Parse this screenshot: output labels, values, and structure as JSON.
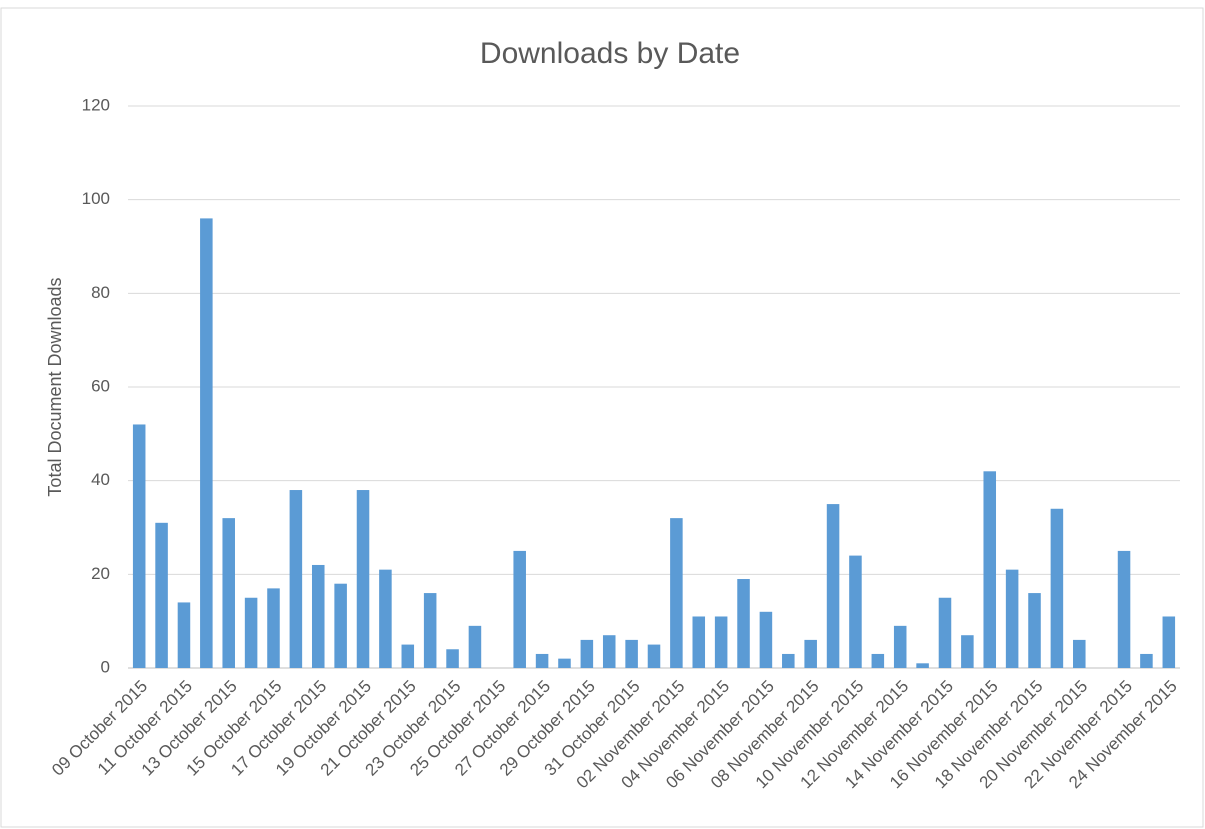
{
  "chart_data": {
    "type": "bar",
    "title": "Downloads by Date",
    "y_label": "Total Document Downloads",
    "categories": [
      "09 October 2015",
      null,
      "11 October 2015",
      null,
      "13 October 2015",
      null,
      "15 October 2015",
      null,
      "17 October 2015",
      null,
      "19 October 2015",
      null,
      "21 October 2015",
      null,
      "23 October 2015",
      null,
      "25 October 2015",
      null,
      "27 October 2015",
      null,
      "29 October 2015",
      null,
      "31 October 2015",
      null,
      "02 November 2015",
      null,
      "04 November 2015",
      null,
      "06 November 2015",
      null,
      "08 November 2015",
      null,
      "10 November 2015",
      null,
      "12 November 2015",
      null,
      "14 November 2015",
      null,
      "16 November 2015",
      null,
      "18 November 2015",
      null,
      "20 November 2015",
      null,
      "22 November 2015",
      null,
      "24 November 2015"
    ],
    "values": [
      52,
      31,
      14,
      96,
      32,
      15,
      17,
      38,
      22,
      18,
      38,
      21,
      5,
      16,
      4,
      9,
      0,
      25,
      3,
      2,
      6,
      7,
      6,
      5,
      32,
      11,
      11,
      19,
      12,
      3,
      6,
      35,
      24,
      3,
      9,
      1,
      15,
      7,
      42,
      21,
      16,
      34,
      6,
      0,
      25,
      3,
      11
    ],
    "color": "#5b9bd5",
    "ylim": [
      0,
      120
    ],
    "yticks": [
      0,
      20,
      40,
      60,
      80,
      100,
      120
    ],
    "grid": true
  }
}
